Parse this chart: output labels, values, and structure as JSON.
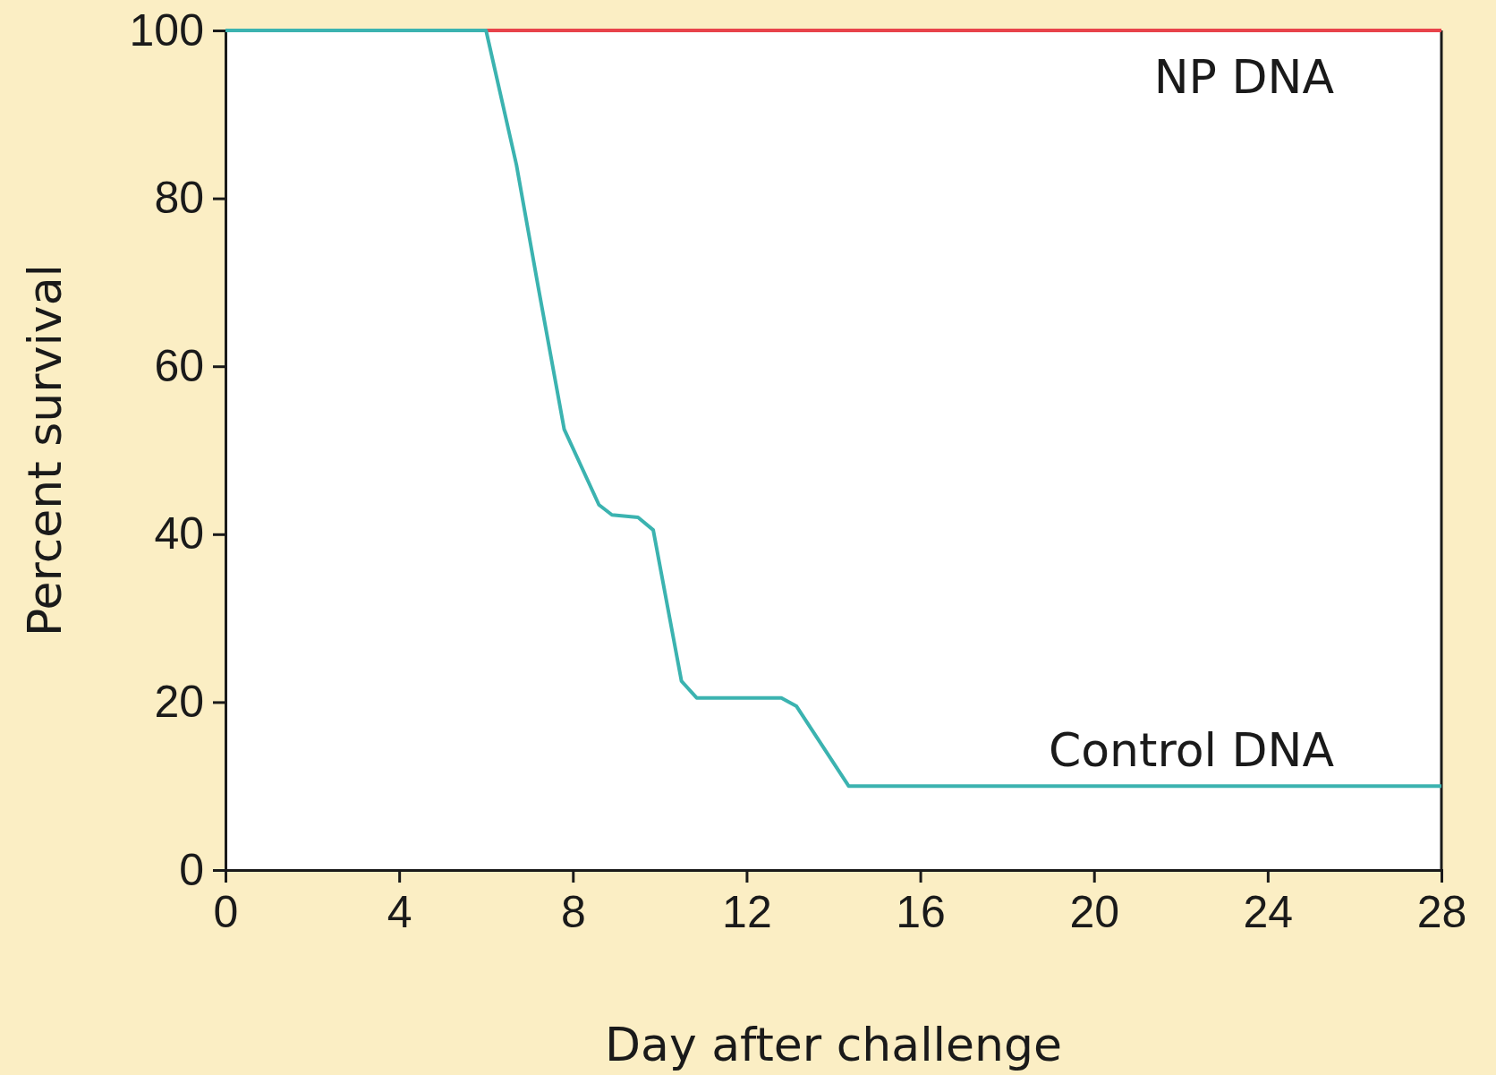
{
  "chart_data": {
    "type": "line",
    "xlabel": "Day after challenge",
    "ylabel": "Percent survival",
    "xlim": [
      0,
      28
    ],
    "ylim": [
      0,
      100
    ],
    "xticks": [
      0,
      4,
      8,
      12,
      16,
      20,
      24,
      28
    ],
    "yticks": [
      0,
      20,
      40,
      60,
      80,
      100
    ],
    "grid": false,
    "marker": "none",
    "line_style": "solid",
    "series": [
      {
        "name": "NP DNA",
        "color": "#e8434a",
        "x": [
          6,
          28
        ],
        "values": [
          100,
          100
        ]
      },
      {
        "name": "Control DNA",
        "color": "#3bb3b0",
        "x": [
          0,
          6,
          6.7,
          7.2,
          7.8,
          8.6,
          8.9,
          9.5,
          9.85,
          10.5,
          10.85,
          12.8,
          13.15,
          14.35,
          28
        ],
        "values": [
          100,
          100,
          84,
          69.5,
          52.5,
          43.5,
          42.3,
          42,
          40.5,
          22.5,
          20.5,
          20.5,
          19.5,
          10,
          10
        ]
      }
    ]
  }
}
